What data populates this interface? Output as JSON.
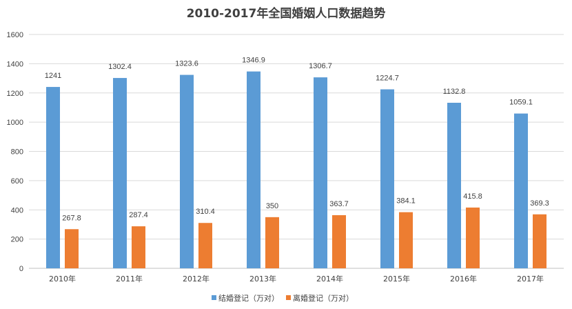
{
  "chart_data": {
    "type": "bar",
    "title": "2010-2017年全国婚姻人口数据趋势",
    "categories": [
      "2010年",
      "2011年",
      "2012年",
      "2013年",
      "2014年",
      "2015年",
      "2016年",
      "2017年"
    ],
    "series": [
      {
        "name": "结婚登记（万对）",
        "color": "#5b9bd5",
        "values": [
          1241,
          1302.4,
          1323.6,
          1346.9,
          1306.7,
          1224.7,
          1132.8,
          1059.1
        ],
        "labels": [
          "1241",
          "1302.4",
          "1323.6",
          "1346.9",
          "1306.7",
          "1224.7",
          "1132.8",
          "1059.1"
        ]
      },
      {
        "name": "离婚登记（万对）",
        "color": "#ed7d31",
        "values": [
          267.8,
          287.4,
          310.4,
          350,
          363.7,
          384.1,
          415.8,
          369.3
        ],
        "labels": [
          "267.8",
          "287.4",
          "310.4",
          "350",
          "363.7",
          "384.1",
          "415.8",
          "369.3"
        ]
      }
    ],
    "ylim": [
      0,
      1600
    ],
    "yticks": [
      0,
      200,
      400,
      600,
      800,
      1000,
      1200,
      1400,
      1600
    ],
    "grid": true,
    "legend_position": "bottom"
  }
}
